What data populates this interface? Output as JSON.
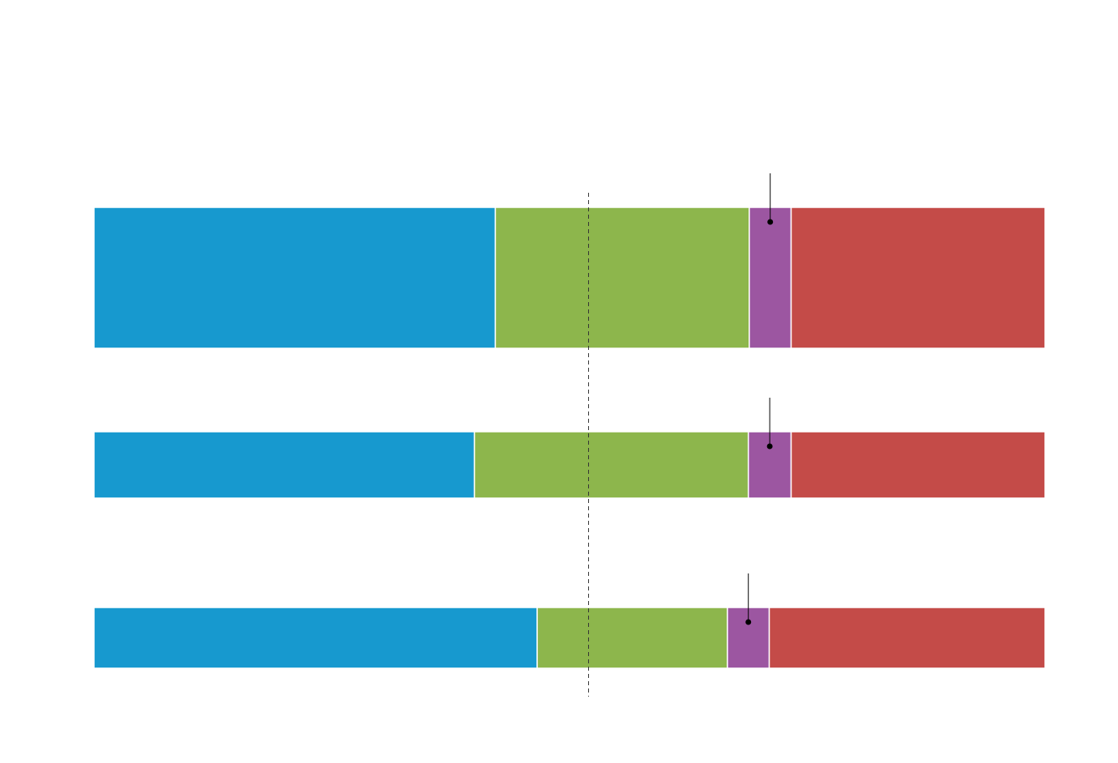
{
  "chart_data": {
    "type": "stacked-bar-horizontal",
    "categories": [
      null,
      null,
      null
    ],
    "series": [
      {
        "color": "#1799cf",
        "values": [
          42.2,
          40.0,
          46.6
        ]
      },
      {
        "color": "#8db64c",
        "values": [
          26.7,
          28.8,
          20.0
        ]
      },
      {
        "color": "#9c56a1",
        "values": [
          4.4,
          4.5,
          4.4
        ]
      },
      {
        "color": "#c44b48",
        "values": [
          26.7,
          26.7,
          29.0
        ]
      }
    ],
    "xlim": [
      0,
      100
    ],
    "reference_line": 52
  }
}
